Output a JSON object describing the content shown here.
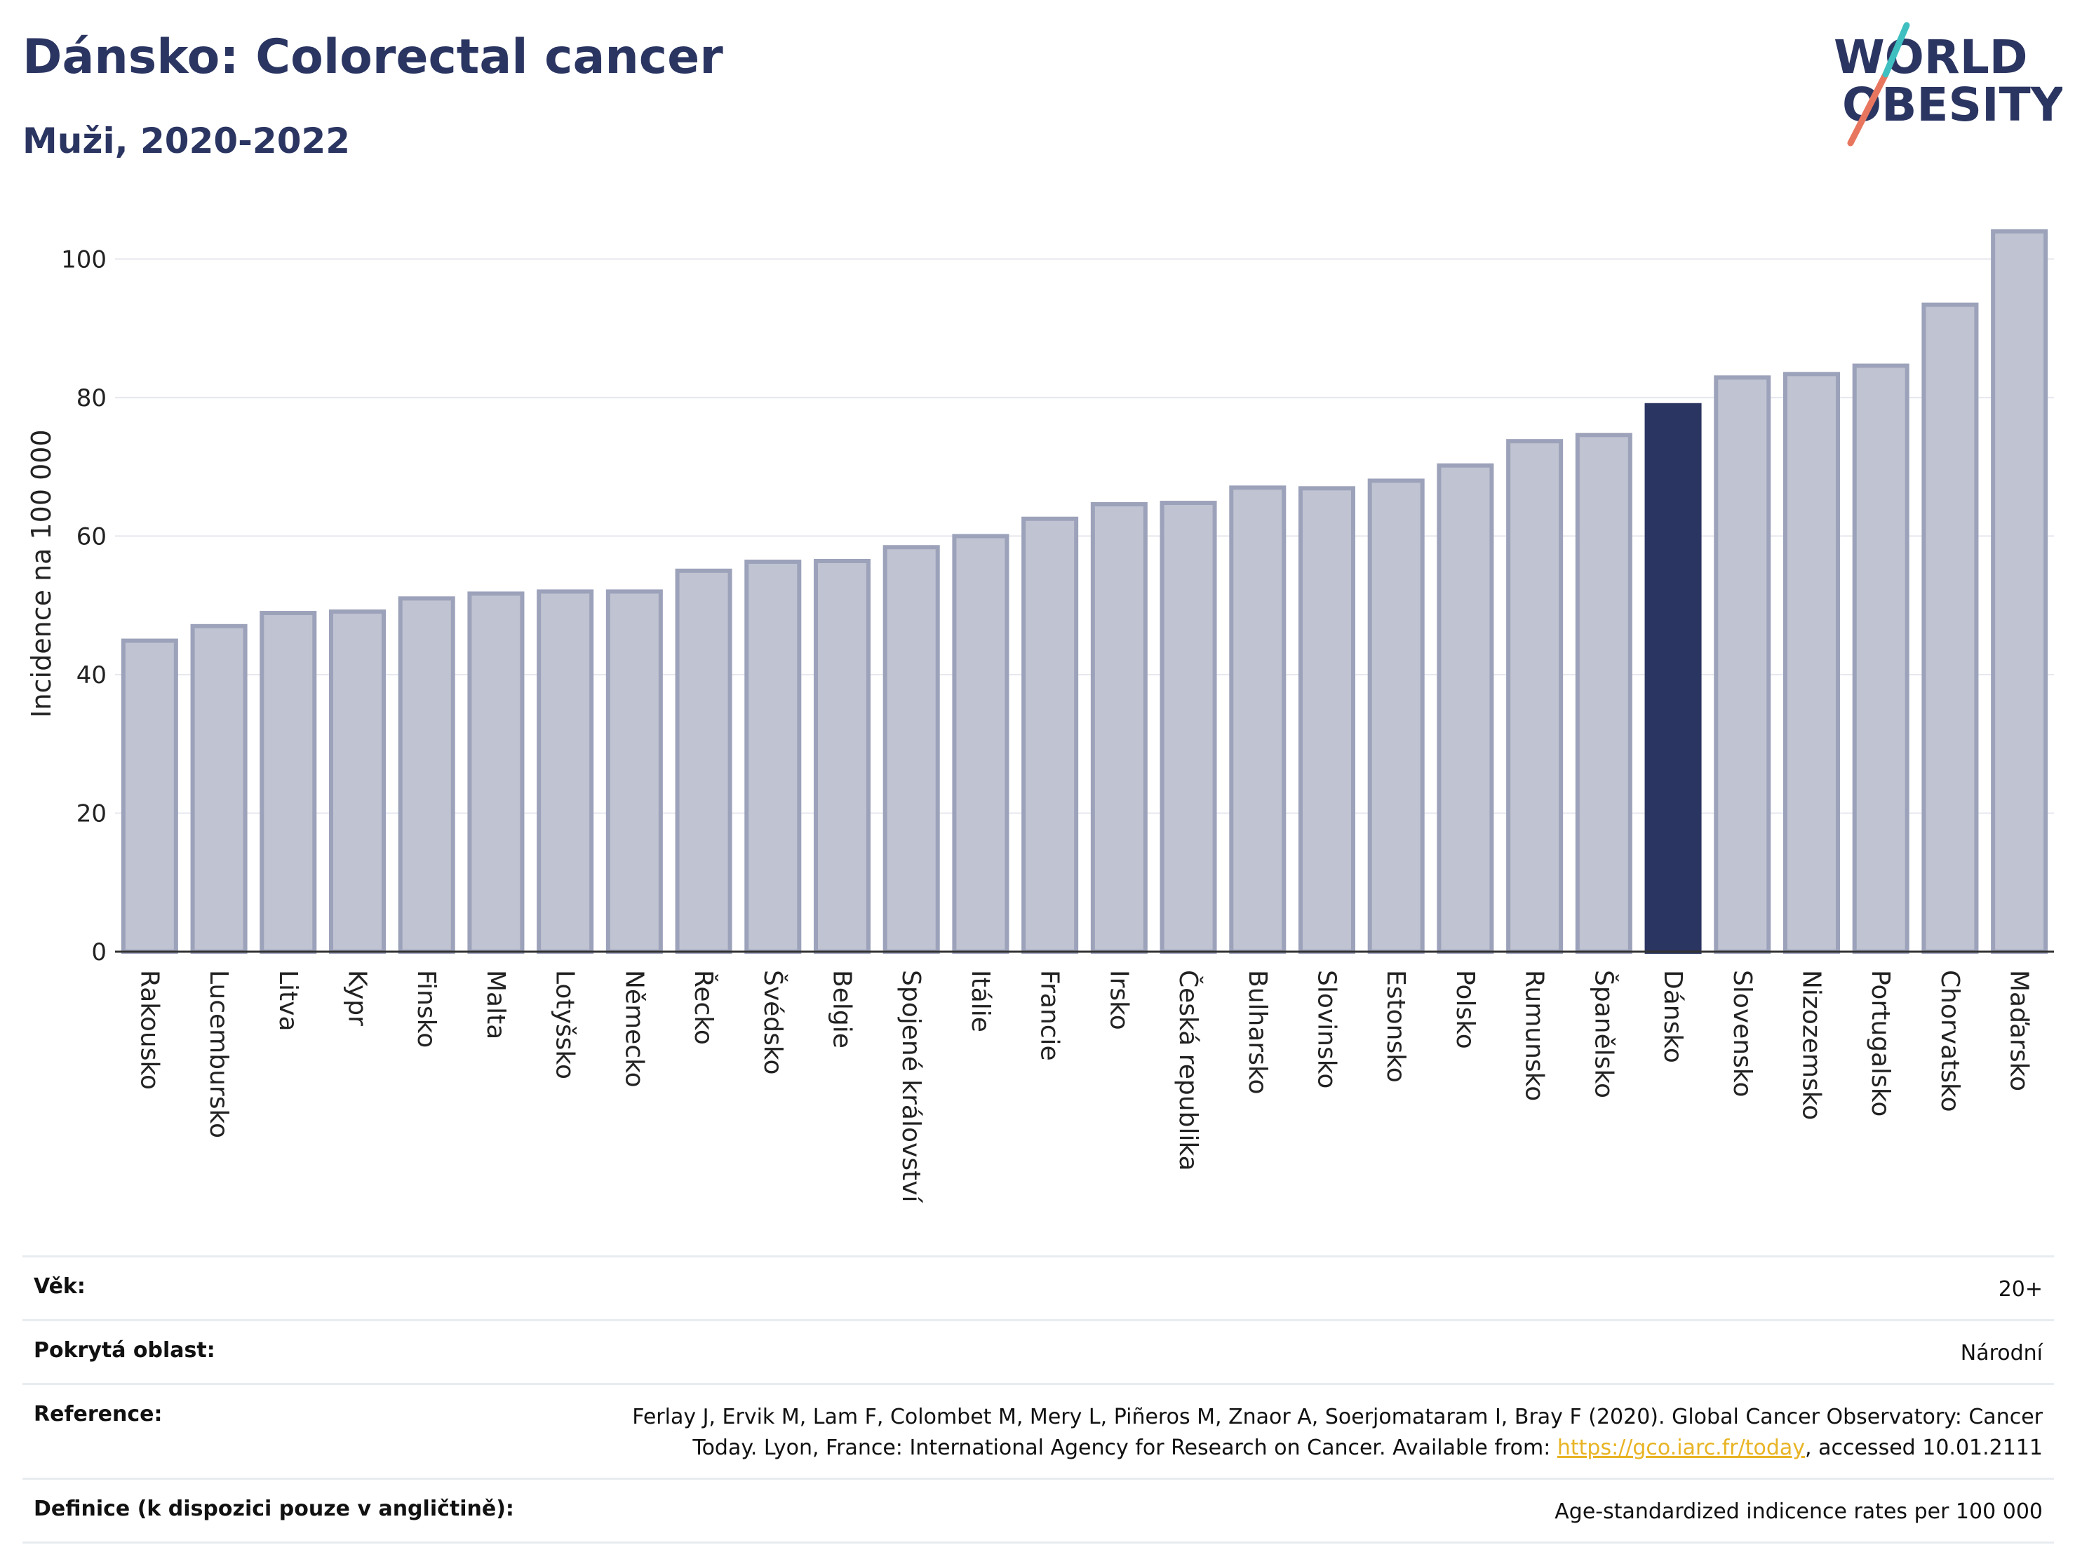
{
  "title": "Dánsko: Colorectal cancer",
  "subtitle": "Muži, 2020-2022",
  "logo": {
    "line1": "WORLD",
    "line2": "OBESITY"
  },
  "colors": {
    "bar": "#c0c3d1",
    "bar_border": "#9ca2ba",
    "highlight": "#2b3561",
    "grid": "#e6e8ee",
    "accent_teal": "#3fbfbf",
    "accent_coral": "#e8765f"
  },
  "chart_data": {
    "type": "bar",
    "ylabel": "Incidence na 100 000",
    "ylim": [
      0,
      105
    ],
    "yticks": [
      0,
      20,
      40,
      60,
      80,
      100
    ],
    "grid": true,
    "highlight": "Dánsko",
    "categories": [
      "Rakousko",
      "Lucembursko",
      "Litva",
      "Kypr",
      "Finsko",
      "Malta",
      "Lotyšsko",
      "Německo",
      "Řecko",
      "Švédsko",
      "Belgie",
      "Spojené království",
      "Itálie",
      "Francie",
      "Irsko",
      "Česká republika",
      "Bulharsko",
      "Slovinsko",
      "Estonsko",
      "Polsko",
      "Rumunsko",
      "Španělsko",
      "Dánsko",
      "Slovensko",
      "Nizozemsko",
      "Portugalsko",
      "Chorvatsko",
      "Maďarsko"
    ],
    "values": [
      44.9,
      47.0,
      48.9,
      49.1,
      51.0,
      51.7,
      52.0,
      52.0,
      55.0,
      56.3,
      56.4,
      58.4,
      60.0,
      62.5,
      64.6,
      64.8,
      67.0,
      66.9,
      68.0,
      70.2,
      73.7,
      74.6,
      78.9,
      82.9,
      83.4,
      84.6,
      93.4,
      104.0
    ]
  },
  "meta": [
    {
      "label": "Věk:",
      "value": "20+"
    },
    {
      "label": "Pokrytá oblast:",
      "value": "Národní"
    },
    {
      "label": "Reference:",
      "value_before": "Ferlay J, Ervik M, Lam F, Colombet M, Mery L, Piñeros M, Znaor A, Soerjomataram I, Bray F (2020). Global Cancer Observatory: Cancer Today. Lyon, France: International Agency for Research on Cancer. Available from: ",
      "link": "https://gco.iarc.fr/today",
      "value_after": ", accessed 10.01.2111"
    },
    {
      "label": "Definice (k dispozici pouze v angličtině):",
      "value": "Age-standardized indicence rates per 100 000"
    }
  ]
}
